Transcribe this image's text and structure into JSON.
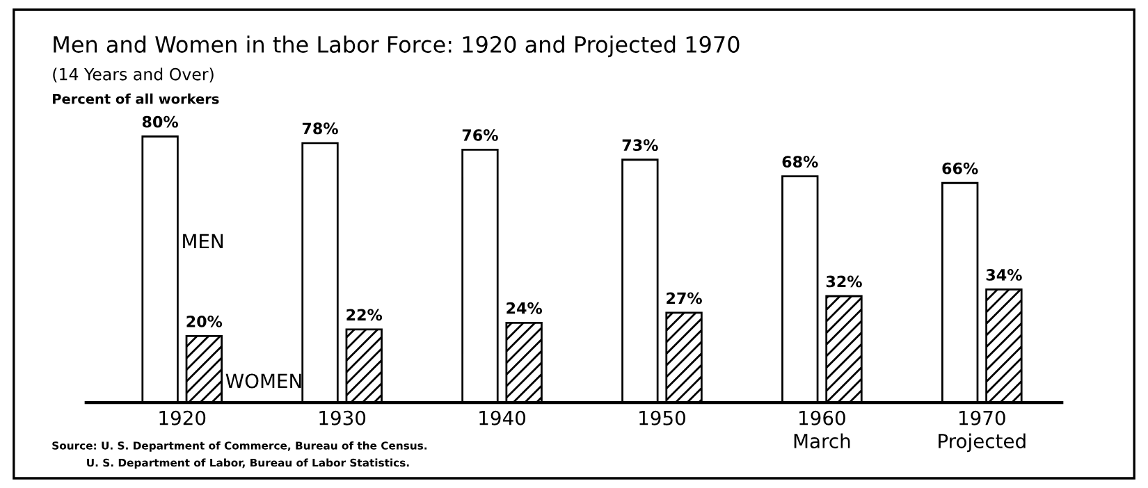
{
  "chart_data": {
    "type": "bar",
    "title": "Men and Women in the Labor Force: 1920 and Projected 1970",
    "subtitle": "(14 Years and Over)",
    "ylabel": "Percent of all workers",
    "categories": [
      "1920",
      "1930",
      "1940",
      "1950",
      "1960\nMarch",
      "1970\nProjected"
    ],
    "series": [
      {
        "name": "MEN",
        "color": "#ffffff",
        "values": [
          80,
          78,
          76,
          73,
          68,
          66
        ],
        "value_labels": [
          "80%",
          "78%",
          "76%",
          "73%",
          "68%",
          "66%"
        ]
      },
      {
        "name": "WOMEN",
        "color": "#000000",
        "values": [
          20,
          22,
          24,
          27,
          32,
          34
        ],
        "value_labels": [
          "20%",
          "22%",
          "24%",
          "27%",
          "32%",
          "34%"
        ]
      }
    ],
    "annotations": [
      "Source: U. S. Department of Commerce, Bureau of the Census.",
      "U. S. Department of Labor, Bureau of Labor Statistics."
    ],
    "grid": false,
    "legend": false
  }
}
